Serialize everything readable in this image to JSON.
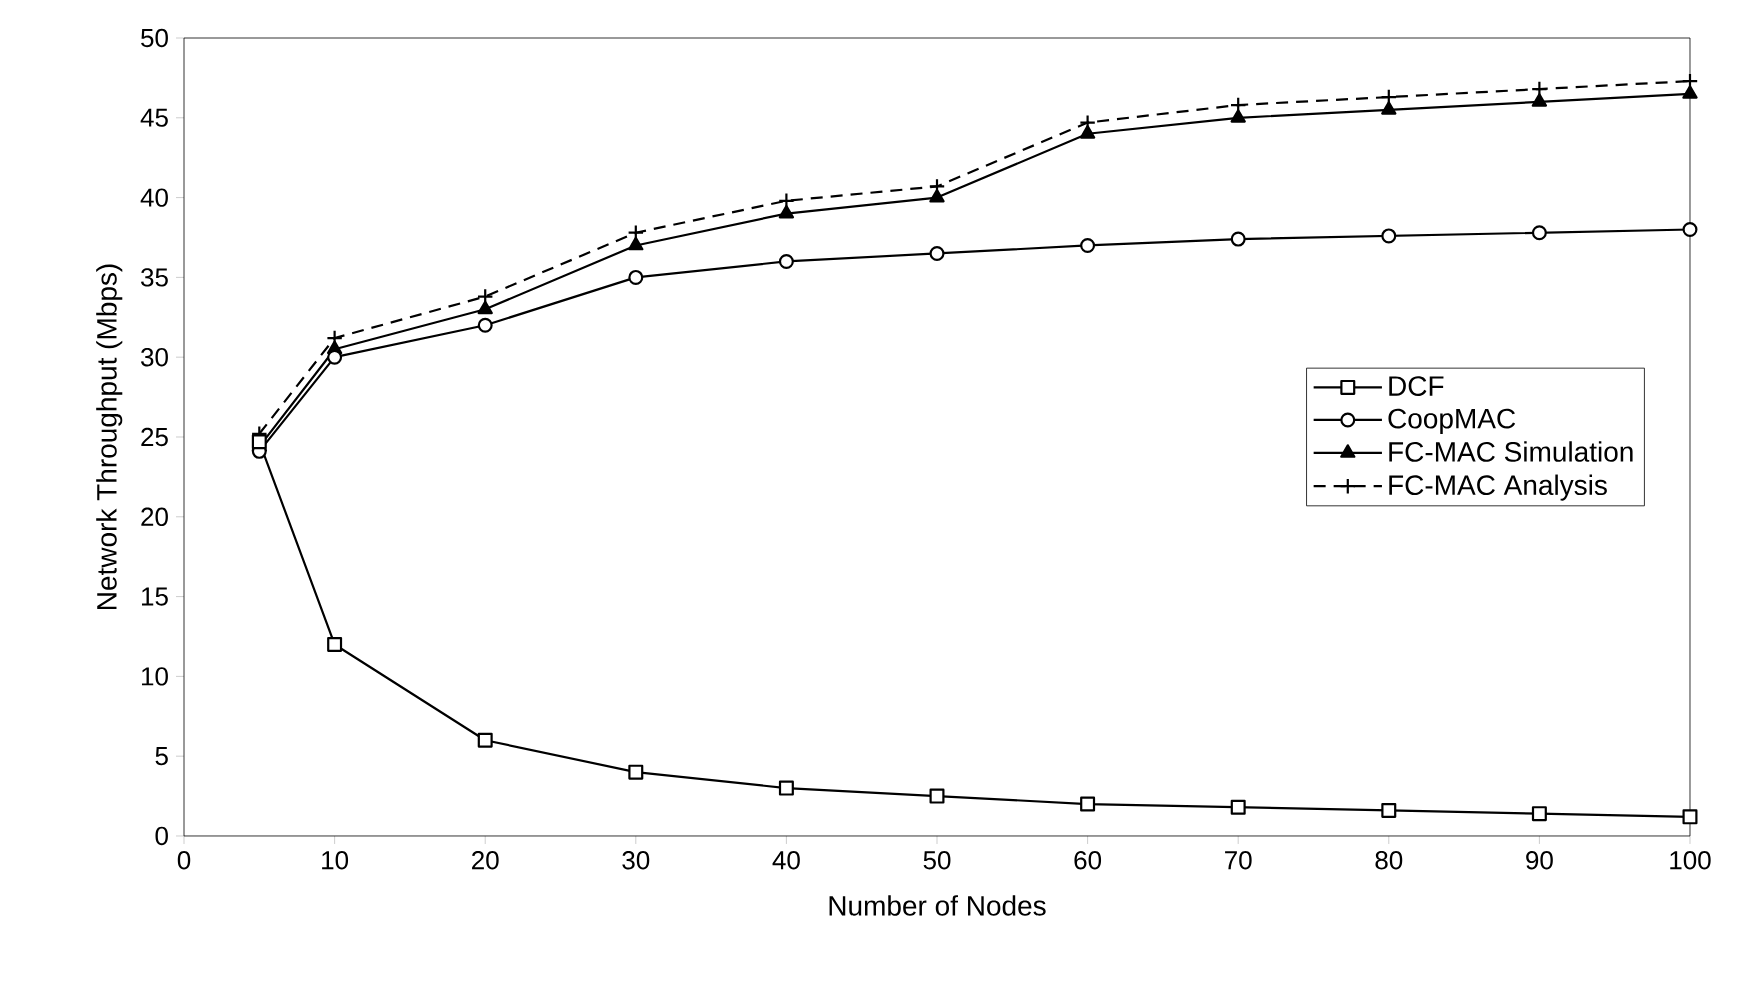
{
  "chart_data": {
    "type": "line",
    "xlabel": "Number of Nodes",
    "ylabel": "Network Throughput (Mbps)",
    "x": [
      5,
      10,
      20,
      30,
      40,
      50,
      60,
      70,
      80,
      90,
      100
    ],
    "xlim": [
      0,
      100
    ],
    "xticks": [
      0,
      10,
      20,
      30,
      40,
      50,
      60,
      70,
      80,
      90,
      100
    ],
    "ylim": [
      0,
      50
    ],
    "yticks": [
      0,
      5,
      10,
      15,
      20,
      25,
      30,
      35,
      40,
      45,
      50
    ],
    "grid": false,
    "legend": "right",
    "series": [
      {
        "name": "DCF",
        "color": "#000000",
        "marker": "square",
        "line_style": "solid",
        "values": [
          24.7,
          12,
          6,
          4,
          3,
          2.5,
          2,
          1.8,
          1.6,
          1.4,
          1.2
        ]
      },
      {
        "name": "CoopMAC",
        "color": "#000000",
        "marker": "circle",
        "line_style": "solid",
        "values": [
          24.1,
          30,
          32,
          35,
          36,
          36.5,
          37,
          37.4,
          37.6,
          37.8,
          38
        ]
      },
      {
        "name": "FC-MAC Simulation",
        "color": "#000000",
        "marker": "triangle",
        "line_style": "solid",
        "values": [
          24.4,
          30.5,
          33,
          37,
          39,
          40,
          44,
          45,
          45.5,
          46,
          46.5
        ]
      },
      {
        "name": "FC-MAC Analysis",
        "color": "#000000",
        "marker": "cross",
        "line_style": "dashed",
        "values": [
          25.2,
          31.2,
          33.8,
          37.8,
          39.8,
          40.7,
          44.7,
          45.8,
          46.3,
          46.8,
          47.3
        ]
      }
    ]
  }
}
